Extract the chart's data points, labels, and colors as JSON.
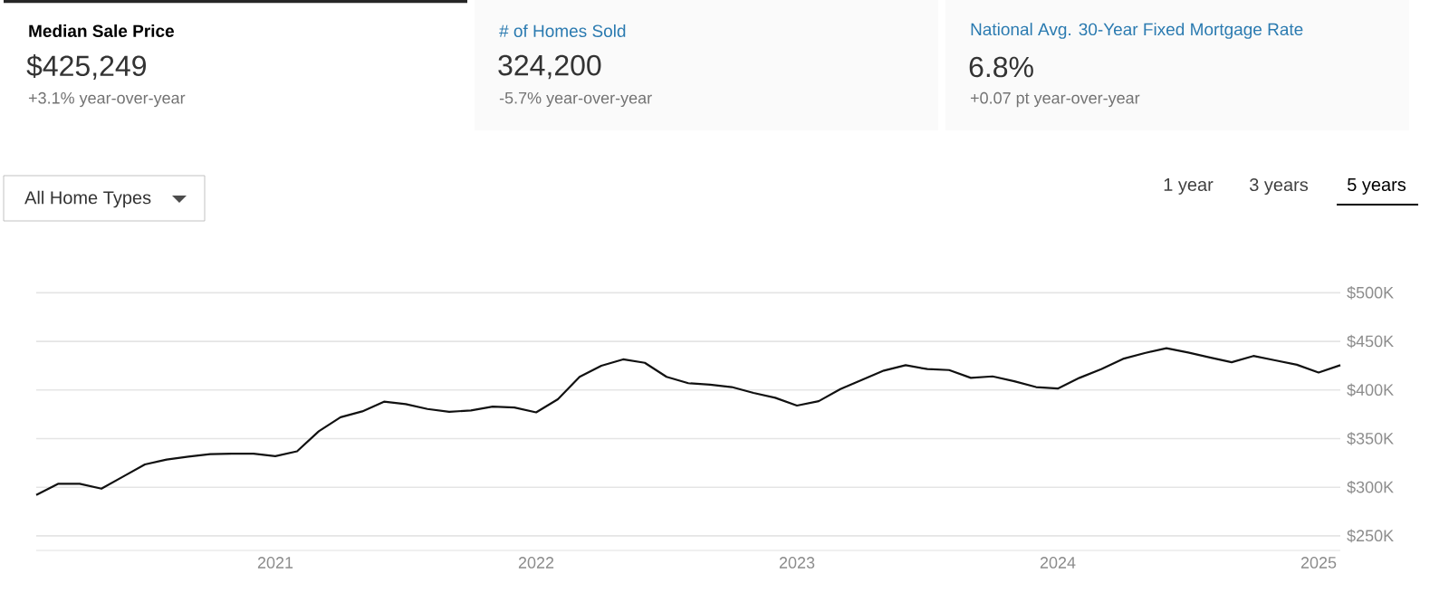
{
  "chart_data": [
    {
      "type": "other",
      "title": "Median Sale Price",
      "subtitle": "$425,249",
      "annotations": [
        "+3.1% year-over-year"
      ]
    },
    {
      "type": "other",
      "title": "# of Homes Sold",
      "subtitle": "324,200",
      "annotations": [
        "-5.7% year-over-year"
      ]
    },
    {
      "type": "other",
      "title": "National Avg. 30-Year Fixed Mortgage Rate",
      "subtitle": "6.8%",
      "annotations": [
        "+0.07 pt year-over-year"
      ]
    },
    {
      "type": "line",
      "color": "#111111",
      "grid": "y",
      "marker": "none",
      "line_style": "solid",
      "annotations": [
        "All Home Types",
        "1 year",
        "3 years",
        "5 years"
      ],
      "xlim": [
        "2020-02",
        "2025-02"
      ],
      "xticks": [
        "2021",
        "2022",
        "2023",
        "2024",
        "2025"
      ],
      "ylim": [
        235,
        505
      ],
      "yticks": [
        {
          "value": 250,
          "label": "$250K"
        },
        {
          "value": 300,
          "label": "$300K"
        },
        {
          "value": 350,
          "label": "$350K"
        },
        {
          "value": 400,
          "label": "$400K"
        },
        {
          "value": 450,
          "label": "$450K"
        },
        {
          "value": 500,
          "label": "$500K"
        }
      ],
      "x": [
        "2020-02",
        "2020-03",
        "2020-04",
        "2020-05",
        "2020-06",
        "2020-07",
        "2020-08",
        "2020-09",
        "2020-10",
        "2020-11",
        "2020-12",
        "2021-01",
        "2021-02",
        "2021-03",
        "2021-04",
        "2021-05",
        "2021-06",
        "2021-07",
        "2021-08",
        "2021-09",
        "2021-10",
        "2021-11",
        "2021-12",
        "2022-01",
        "2022-02",
        "2022-03",
        "2022-04",
        "2022-05",
        "2022-06",
        "2022-07",
        "2022-08",
        "2022-09",
        "2022-10",
        "2022-11",
        "2022-12",
        "2023-01",
        "2023-02",
        "2023-03",
        "2023-04",
        "2023-05",
        "2023-06",
        "2023-07",
        "2023-08",
        "2023-09",
        "2023-10",
        "2023-11",
        "2023-12",
        "2024-01",
        "2024-02",
        "2024-03",
        "2024-04",
        "2024-05",
        "2024-06",
        "2024-07",
        "2024-08",
        "2024-09",
        "2024-10",
        "2024-11",
        "2024-12",
        "2025-01",
        "2025-02"
      ],
      "values": [
        292,
        303.5,
        303.5,
        298.5,
        311,
        323.5,
        328.5,
        331.5,
        334,
        334.5,
        334.5,
        332,
        337,
        357.5,
        372,
        378,
        388,
        385.5,
        380.5,
        377.5,
        379,
        383,
        382,
        377,
        390.5,
        413.5,
        425,
        431.5,
        428,
        413.5,
        407,
        405.5,
        403,
        397,
        392,
        384,
        388.5,
        401,
        410.5,
        420,
        425.5,
        421.5,
        420.5,
        412.5,
        414,
        409,
        403,
        401.5,
        412.5,
        421.5,
        432,
        438,
        443,
        438.5,
        433.5,
        428.5,
        435,
        430.5,
        426,
        418,
        425.5
      ]
    }
  ]
}
